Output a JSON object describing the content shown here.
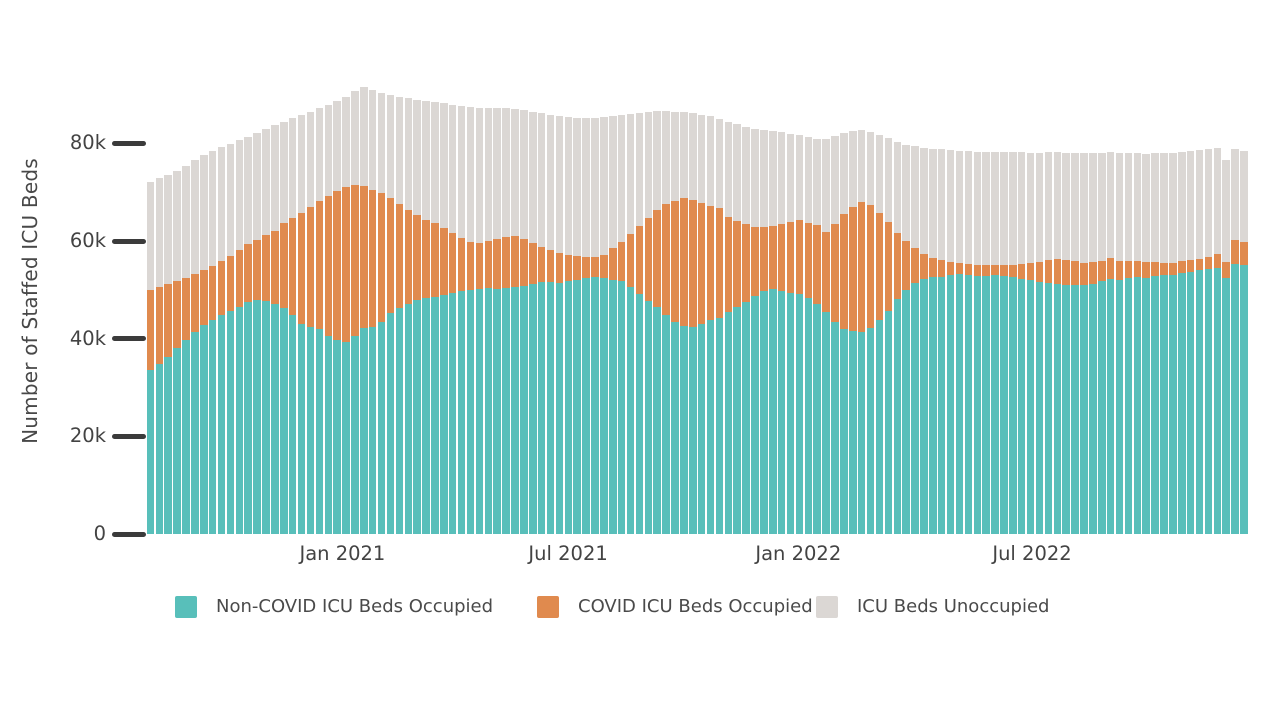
{
  "chart_data": {
    "type": "bar",
    "stacked": true,
    "title": "",
    "xlabel": "",
    "ylabel": "Number of Staffed ICU Beds",
    "units": "thousands of ICU beds",
    "ylim": [
      0,
      94
    ],
    "grid": false,
    "legend_position": "bottom",
    "y_ticks": [
      {
        "value": 0,
        "label": "0"
      },
      {
        "value": 20,
        "label": "20k"
      },
      {
        "value": 40,
        "label": "40k"
      },
      {
        "value": 60,
        "label": "60k"
      },
      {
        "value": 80,
        "label": "80k"
      }
    ],
    "x_ticks": [
      {
        "pos": 21.6,
        "label": "Jan 2021"
      },
      {
        "pos": 47.0,
        "label": "Jul 2021"
      },
      {
        "pos": 72.9,
        "label": "Jan 2022"
      },
      {
        "pos": 99.2,
        "label": "Jul 2022"
      }
    ],
    "x_description": "weekly bars, Aug 2020 through Dec 2022",
    "series": [
      {
        "name": "Non-COVID ICU Beds Occupied",
        "color": "#58BFBA",
        "values": [
          33.6,
          34.9,
          36.3,
          38.0,
          39.8,
          41.3,
          42.8,
          43.9,
          44.8,
          45.7,
          46.6,
          47.5,
          48.0,
          47.8,
          47.2,
          46.3,
          44.8,
          43.0,
          42.4,
          42.0,
          40.5,
          39.7,
          39.4,
          40.5,
          42.1,
          42.4,
          43.5,
          45.2,
          46.2,
          47.2,
          47.9,
          48.3,
          48.6,
          49.0,
          49.4,
          49.7,
          49.9,
          50.1,
          50.3,
          50.2,
          50.3,
          50.6,
          50.9,
          51.3,
          51.7,
          51.6,
          51.4,
          51.8,
          52.1,
          52.4,
          52.6,
          52.4,
          52.1,
          51.9,
          50.6,
          49.1,
          47.7,
          46.6,
          44.9,
          43.4,
          42.7,
          42.5,
          43.1,
          43.8,
          44.3,
          45.4,
          46.5,
          47.6,
          48.8,
          49.8,
          50.1,
          49.7,
          49.4,
          49.2,
          48.4,
          47.2,
          45.4,
          43.4,
          42.0,
          41.5,
          41.3,
          42.1,
          43.9,
          45.6,
          48.2,
          50.0,
          51.5,
          52.2,
          52.6,
          52.7,
          53.0,
          53.2,
          53.1,
          52.9,
          52.9,
          53.0,
          52.8,
          52.6,
          52.3,
          52.0,
          51.7,
          51.4,
          51.2,
          51.0,
          51.0,
          51.1,
          51.3,
          51.8,
          52.3,
          52.1,
          52.4,
          52.6,
          52.4,
          52.8,
          53.0,
          53.1,
          53.4,
          53.7,
          54.0,
          54.3,
          54.5,
          52.4,
          55.3,
          55.1
        ]
      },
      {
        "name": "COVID ICU Beds Occupied",
        "color": "#E08A4E",
        "values": [
          16.4,
          15.7,
          14.8,
          13.8,
          12.7,
          11.9,
          11.2,
          11.0,
          11.1,
          11.2,
          11.5,
          12.0,
          12.3,
          13.4,
          14.9,
          17.4,
          20.0,
          22.8,
          24.6,
          26.3,
          28.7,
          30.5,
          31.6,
          30.9,
          29.1,
          28.0,
          26.3,
          23.6,
          21.4,
          19.2,
          17.4,
          16.1,
          15.1,
          13.7,
          12.2,
          10.9,
          9.9,
          9.5,
          9.7,
          10.2,
          10.5,
          10.4,
          9.5,
          8.3,
          7.1,
          6.6,
          6.2,
          5.4,
          4.8,
          4.3,
          4.2,
          4.7,
          6.4,
          7.9,
          10.9,
          14.0,
          17.1,
          19.7,
          22.6,
          24.9,
          26.1,
          26.0,
          24.7,
          23.4,
          22.4,
          19.5,
          17.5,
          15.8,
          14.1,
          13.0,
          12.9,
          13.7,
          14.5,
          15.1,
          15.4,
          16.0,
          16.5,
          20.2,
          23.5,
          25.5,
          26.7,
          25.3,
          21.8,
          18.2,
          13.4,
          10.0,
          7.0,
          5.1,
          4.0,
          3.4,
          2.8,
          2.4,
          2.2,
          2.2,
          2.1,
          2.1,
          2.3,
          2.6,
          3.0,
          3.5,
          4.1,
          4.7,
          5.1,
          5.2,
          4.9,
          4.5,
          4.4,
          4.2,
          4.2,
          3.9,
          3.5,
          3.4,
          3.3,
          3.0,
          2.6,
          2.5,
          2.5,
          2.4,
          2.4,
          2.4,
          2.8,
          3.3,
          4.9,
          4.8
        ]
      },
      {
        "name": "ICU Beds Unoccupied",
        "color": "#DBD7D4",
        "values": [
          22.1,
          22.3,
          22.4,
          22.6,
          22.9,
          23.3,
          23.6,
          23.5,
          23.3,
          23.0,
          22.5,
          21.9,
          21.8,
          21.7,
          21.6,
          20.7,
          20.3,
          20.0,
          19.5,
          18.9,
          18.7,
          18.4,
          18.6,
          19.4,
          20.3,
          20.6,
          20.6,
          21.2,
          22.0,
          22.8,
          23.6,
          24.3,
          24.8,
          25.5,
          26.3,
          27.0,
          27.6,
          27.7,
          27.3,
          26.8,
          26.4,
          26.0,
          26.4,
          26.9,
          27.4,
          27.7,
          28.0,
          28.2,
          28.3,
          28.4,
          28.4,
          28.3,
          27.2,
          26.1,
          24.6,
          23.2,
          21.7,
          20.4,
          19.1,
          18.2,
          17.6,
          17.7,
          18.1,
          18.3,
          18.3,
          19.5,
          19.9,
          20.0,
          20.1,
          19.9,
          19.5,
          18.9,
          18.1,
          17.4,
          17.5,
          17.8,
          18.9,
          17.9,
          16.7,
          15.6,
          14.7,
          15.0,
          16.0,
          17.2,
          18.6,
          19.7,
          20.9,
          21.8,
          22.3,
          22.7,
          22.8,
          22.9,
          23.1,
          23.2,
          23.3,
          23.2,
          23.1,
          23.0,
          22.9,
          22.6,
          22.3,
          22.1,
          21.9,
          21.9,
          22.1,
          22.4,
          22.3,
          22.1,
          21.8,
          22.1,
          22.1,
          22.1,
          22.2,
          22.2,
          22.4,
          22.5,
          22.4,
          22.3,
          22.2,
          22.1,
          21.7,
          20.9,
          18.6,
          18.5
        ]
      }
    ],
    "legend": [
      {
        "label": "Non-COVID ICU Beds Occupied",
        "color": "#58BFBA"
      },
      {
        "label": "COVID ICU Beds Occupied",
        "color": "#E08A4E"
      },
      {
        "label": "ICU Beds Unoccupied",
        "color": "#DBD7D4"
      }
    ]
  },
  "colors": {
    "background": "#FFFFFF",
    "tick_mark": "#3B3B3B",
    "axis_text": "#434343",
    "legend_text": "#4A4A4A"
  }
}
